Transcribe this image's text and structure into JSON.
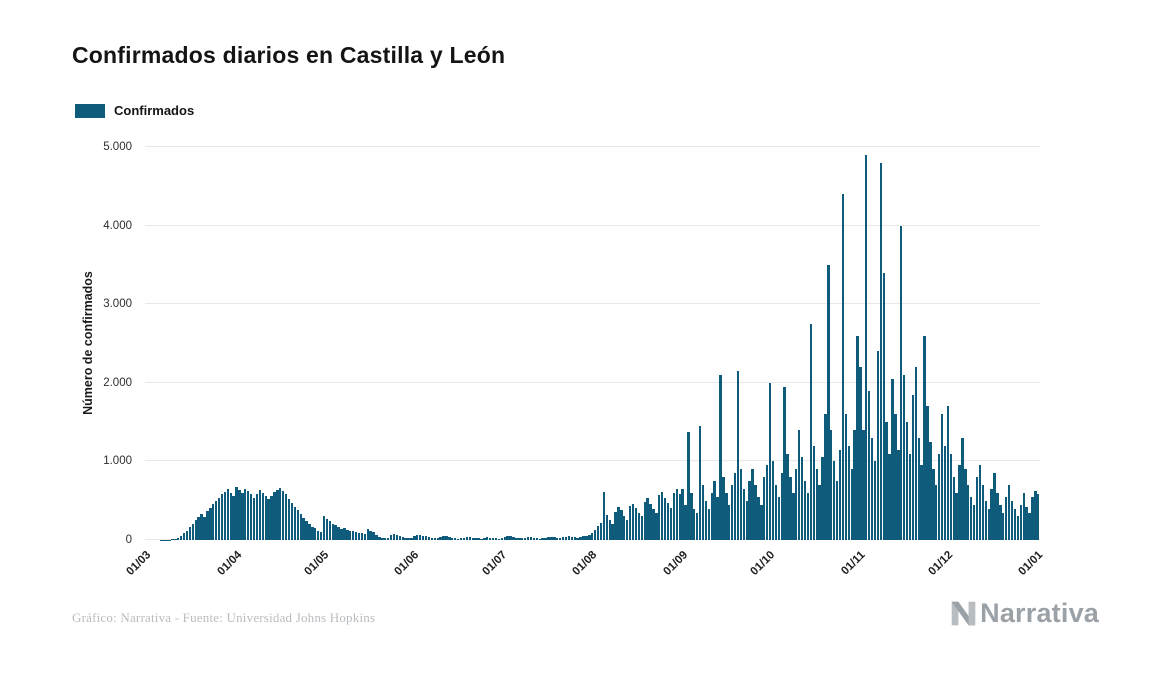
{
  "title": "Confirmados diarios en Castilla y León",
  "legend": {
    "label": "Confirmados"
  },
  "footer": {
    "credit": "Gráfico: Narrativa - Fuente: Universidad Johns Hopkins",
    "brand": "Narrativa"
  },
  "colors": {
    "bar": "#0f5b7c",
    "grid": "#e8e8e8",
    "axis_text": "#1f1f1f",
    "footer_text": "#b9bcbf",
    "brand_text": "#9aa1a7",
    "brand_mark_light": "#b8bdc1"
  },
  "chart_data": {
    "type": "bar",
    "title": "Confirmados diarios en Castilla y León",
    "xlabel": "",
    "ylabel": "Número de confirmados",
    "ylim": [
      0,
      5000
    ],
    "grid": true,
    "legend_position": "top-left",
    "ytick_values": [
      0,
      1000,
      2000,
      3000,
      4000,
      5000
    ],
    "ytick_labels": [
      "0",
      "1.000",
      "2.000",
      "3.000",
      "4.000",
      "5.000"
    ],
    "xtick_labels": [
      "01/03",
      "01/04",
      "01/05",
      "01/06",
      "01/07",
      "01/08",
      "01/09",
      "01/10",
      "01/11",
      "01/12",
      "01/01"
    ],
    "xtick_indices": [
      0,
      31,
      61,
      92,
      122,
      153,
      184,
      214,
      245,
      275,
      306
    ],
    "x_unit": "day",
    "series": [
      {
        "name": "Confirmados",
        "values": [
          0,
          0,
          0,
          0,
          0,
          1,
          2,
          3,
          5,
          8,
          15,
          30,
          55,
          85,
          120,
          160,
          200,
          250,
          290,
          330,
          290,
          370,
          410,
          460,
          500,
          540,
          580,
          610,
          650,
          600,
          560,
          680,
          640,
          600,
          650,
          620,
          580,
          540,
          590,
          630,
          600,
          560,
          520,
          560,
          610,
          640,
          660,
          620,
          580,
          520,
          470,
          420,
          380,
          330,
          280,
          240,
          200,
          170,
          150,
          120,
          100,
          300,
          270,
          240,
          210,
          190,
          160,
          145,
          150,
          130,
          120,
          110,
          100,
          90,
          85,
          80,
          140,
          120,
          100,
          60,
          40,
          30,
          25,
          20,
          60,
          80,
          70,
          50,
          40,
          30,
          25,
          20,
          50,
          60,
          70,
          55,
          45,
          35,
          30,
          25,
          20,
          40,
          55,
          45,
          35,
          25,
          20,
          15,
          20,
          30,
          40,
          35,
          30,
          25,
          20,
          15,
          25,
          35,
          30,
          25,
          20,
          15,
          30,
          40,
          50,
          45,
          35,
          30,
          25,
          20,
          30,
          40,
          35,
          30,
          25,
          15,
          20,
          30,
          35,
          40,
          35,
          30,
          25,
          35,
          40,
          45,
          40,
          35,
          30,
          40,
          50,
          55,
          60,
          90,
          130,
          180,
          220,
          610,
          320,
          260,
          210,
          360,
          420,
          380,
          310,
          260,
          430,
          460,
          410,
          350,
          300,
          490,
          530,
          460,
          400,
          350,
          570,
          610,
          530,
          470,
          410,
          600,
          650,
          590,
          650,
          450,
          1380,
          600,
          400,
          350,
          1450,
          700,
          500,
          400,
          600,
          750,
          550,
          2100,
          800,
          600,
          450,
          700,
          850,
          2150,
          900,
          650,
          500,
          750,
          900,
          700,
          550,
          450,
          800,
          950,
          2000,
          1000,
          700,
          550,
          850,
          1950,
          1100,
          800,
          600,
          900,
          1400,
          1050,
          750,
          600,
          2750,
          1200,
          900,
          700,
          1050,
          1600,
          3500,
          1400,
          1000,
          750,
          1150,
          4400,
          1600,
          1200,
          900,
          1400,
          2600,
          2200,
          1400,
          4900,
          1900,
          1300,
          1000,
          2400,
          4800,
          3400,
          1500,
          1100,
          2050,
          1600,
          1150,
          4000,
          2100,
          1500,
          1100,
          1850,
          2200,
          1300,
          950,
          2600,
          1700,
          1250,
          900,
          700,
          1100,
          1600,
          1200,
          1700,
          1100,
          800,
          600,
          950,
          1300,
          900,
          700,
          550,
          450,
          800,
          950,
          700,
          500,
          400,
          650,
          850,
          600,
          450,
          350,
          550,
          700,
          500,
          400,
          300,
          450,
          600,
          420,
          350,
          550,
          620,
          580
        ]
      }
    ]
  }
}
